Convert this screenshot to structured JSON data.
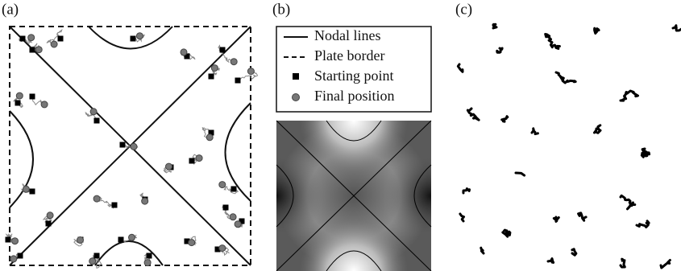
{
  "panels": [
    {
      "label": "(a)"
    },
    {
      "label": "(b)"
    },
    {
      "label": "(c)"
    }
  ],
  "legend": {
    "items": [
      {
        "label": "Nodal lines"
      },
      {
        "label": "Plate border"
      },
      {
        "label": "Starting point"
      },
      {
        "label": "Final position"
      }
    ]
  }
}
